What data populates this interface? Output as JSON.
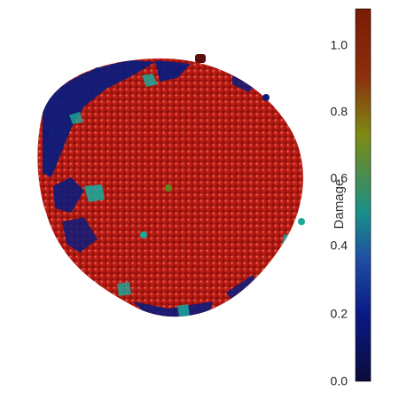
{
  "figure": {
    "colorbar": {
      "label": "Damage",
      "ticks": [
        "1.0",
        "0.8",
        "0.6",
        "0.4",
        "0.2",
        "0.0"
      ],
      "range": [
        0.0,
        1.1
      ],
      "colormap_stops": [
        "#0b0b3b",
        "#0a1a86",
        "#1f4fa2",
        "#188f8a",
        "#7d8b13",
        "#8b2f0d",
        "#7a1b04"
      ]
    },
    "particles": {
      "dominant_color": "#b31a12",
      "low_damage_color": "#0d1c7a",
      "mid_damage_color": "#1ea79a",
      "outlier_color": "#5a0d0a"
    }
  }
}
